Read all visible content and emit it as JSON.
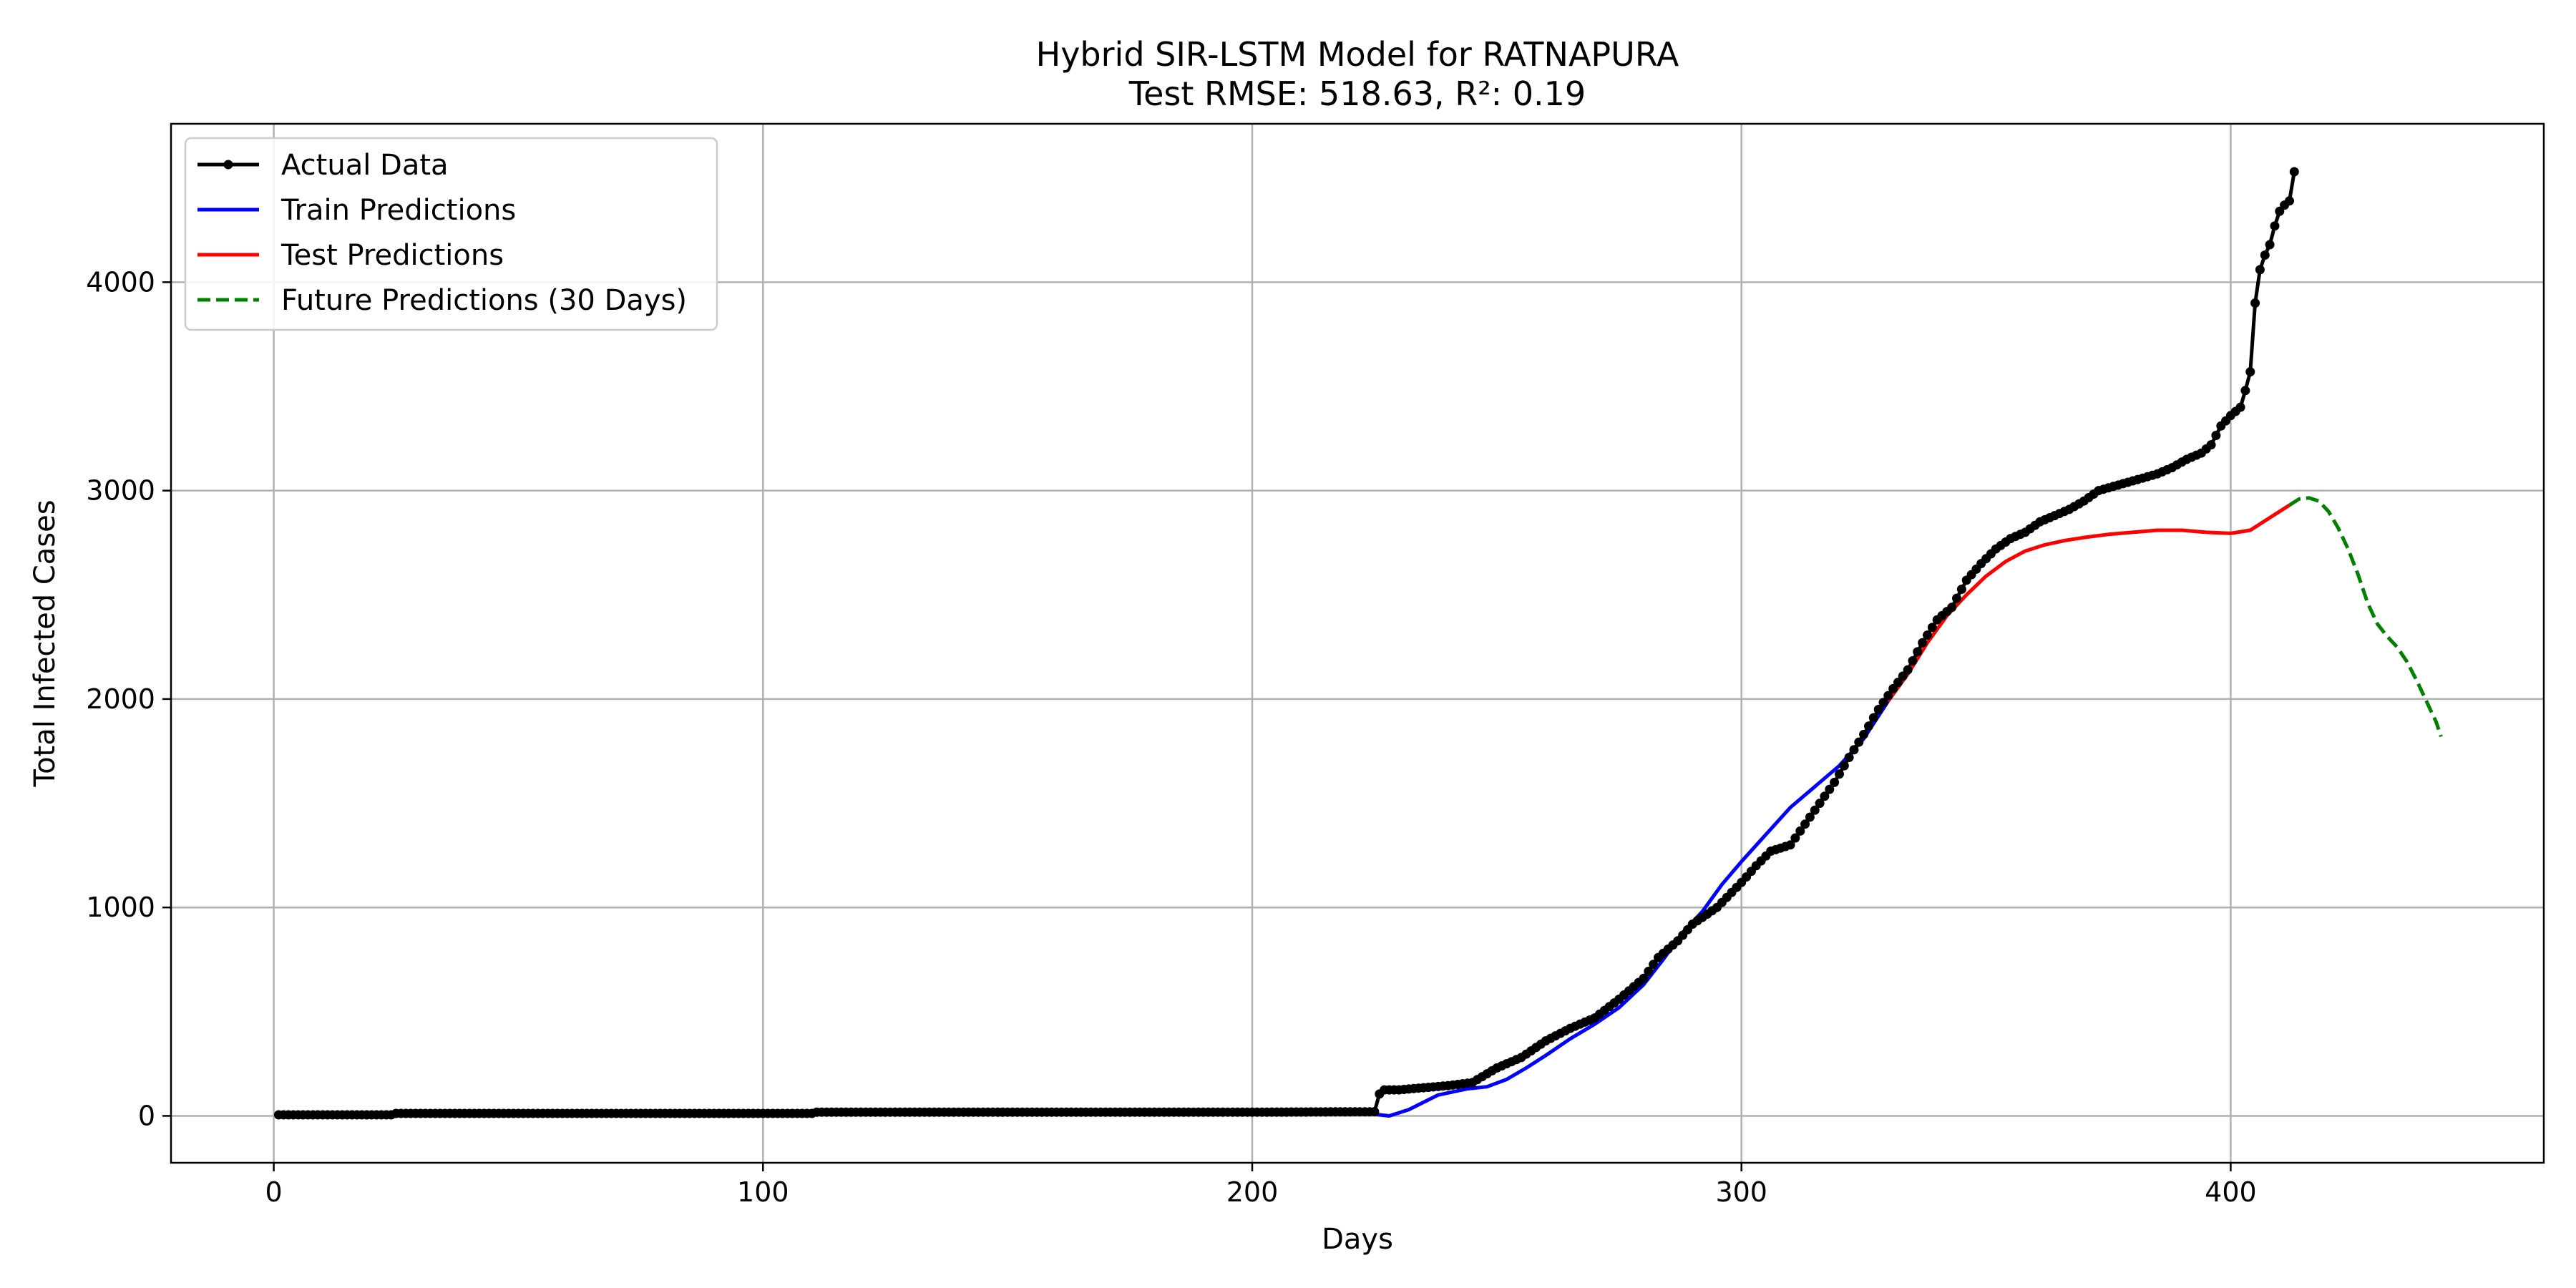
{
  "chart_data": {
    "type": "line",
    "title": "Hybrid SIR-LSTM Model for RATNAPURA",
    "subtitle": "Test RMSE: 518.63, R²: 0.19",
    "xlabel": "Days",
    "ylabel": "Total Infected Cases",
    "xlim": [
      -21,
      464
    ],
    "ylim": [
      -225,
      4760
    ],
    "xticks": [
      0,
      100,
      200,
      300,
      400
    ],
    "yticks": [
      0,
      1000,
      2000,
      3000,
      4000
    ],
    "grid": true,
    "legend_position": "upper-left",
    "series": [
      {
        "name": "Actual Data",
        "color": "#000000",
        "style": "solid-with-markers",
        "points": [
          [
            1,
            5
          ],
          [
            10,
            5
          ],
          [
            24,
            5
          ],
          [
            25,
            12
          ],
          [
            60,
            12
          ],
          [
            100,
            12
          ],
          [
            110,
            12
          ],
          [
            111,
            18
          ],
          [
            150,
            18
          ],
          [
            200,
            18
          ],
          [
            225,
            20
          ],
          [
            226,
            105
          ],
          [
            227,
            125
          ],
          [
            230,
            125
          ],
          [
            235,
            135
          ],
          [
            240,
            145
          ],
          [
            245,
            160
          ],
          [
            250,
            230
          ],
          [
            255,
            280
          ],
          [
            260,
            360
          ],
          [
            265,
            420
          ],
          [
            270,
            470
          ],
          [
            275,
            560
          ],
          [
            280,
            660
          ],
          [
            283,
            760
          ],
          [
            287,
            840
          ],
          [
            290,
            920
          ],
          [
            295,
            1000
          ],
          [
            300,
            1120
          ],
          [
            303,
            1200
          ],
          [
            306,
            1270
          ],
          [
            310,
            1300
          ],
          [
            313,
            1400
          ],
          [
            316,
            1500
          ],
          [
            319,
            1600
          ],
          [
            322,
            1720
          ],
          [
            325,
            1830
          ],
          [
            328,
            1950
          ],
          [
            331,
            2050
          ],
          [
            334,
            2140
          ],
          [
            337,
            2270
          ],
          [
            340,
            2380
          ],
          [
            343,
            2440
          ],
          [
            346,
            2570
          ],
          [
            349,
            2650
          ],
          [
            352,
            2720
          ],
          [
            355,
            2770
          ],
          [
            358,
            2800
          ],
          [
            361,
            2850
          ],
          [
            364,
            2880
          ],
          [
            367,
            2910
          ],
          [
            370,
            2950
          ],
          [
            373,
            3000
          ],
          [
            376,
            3020
          ],
          [
            379,
            3040
          ],
          [
            382,
            3060
          ],
          [
            385,
            3080
          ],
          [
            388,
            3110
          ],
          [
            391,
            3150
          ],
          [
            394,
            3180
          ],
          [
            396,
            3220
          ],
          [
            398,
            3310
          ],
          [
            400,
            3360
          ],
          [
            402,
            3400
          ],
          [
            403,
            3480
          ],
          [
            404,
            3570
          ],
          [
            405,
            3900
          ],
          [
            406,
            4060
          ],
          [
            407,
            4130
          ],
          [
            408,
            4180
          ],
          [
            409,
            4270
          ],
          [
            410,
            4340
          ],
          [
            411,
            4370
          ],
          [
            412,
            4390
          ],
          [
            413,
            4530
          ]
        ]
      },
      {
        "name": "Train Predictions",
        "color": "#0000ff",
        "style": "solid",
        "points": [
          [
            15,
            0
          ],
          [
            25,
            5
          ],
          [
            60,
            5
          ],
          [
            110,
            8
          ],
          [
            200,
            8
          ],
          [
            225,
            8
          ],
          [
            228,
            0
          ],
          [
            232,
            30
          ],
          [
            238,
            100
          ],
          [
            244,
            130
          ],
          [
            248,
            140
          ],
          [
            252,
            175
          ],
          [
            256,
            230
          ],
          [
            260,
            290
          ],
          [
            265,
            370
          ],
          [
            270,
            440
          ],
          [
            275,
            520
          ],
          [
            280,
            630
          ],
          [
            284,
            750
          ],
          [
            288,
            880
          ],
          [
            292,
            980
          ],
          [
            296,
            1110
          ],
          [
            300,
            1220
          ],
          [
            305,
            1350
          ],
          [
            310,
            1480
          ],
          [
            315,
            1580
          ],
          [
            320,
            1680
          ],
          [
            325,
            1810
          ],
          [
            330,
            1990
          ]
        ]
      },
      {
        "name": "Test Predictions",
        "color": "#ff0000",
        "style": "solid",
        "points": [
          [
            330,
            1990
          ],
          [
            334,
            2120
          ],
          [
            338,
            2270
          ],
          [
            342,
            2400
          ],
          [
            346,
            2500
          ],
          [
            350,
            2590
          ],
          [
            354,
            2660
          ],
          [
            358,
            2710
          ],
          [
            362,
            2740
          ],
          [
            366,
            2760
          ],
          [
            370,
            2775
          ],
          [
            375,
            2790
          ],
          [
            380,
            2800
          ],
          [
            385,
            2810
          ],
          [
            390,
            2810
          ],
          [
            395,
            2800
          ],
          [
            400,
            2795
          ],
          [
            404,
            2810
          ],
          [
            408,
            2870
          ],
          [
            412,
            2930
          ]
        ]
      },
      {
        "name": "Future Predictions (30 Days)",
        "color": "#008000",
        "style": "dashed",
        "points": [
          [
            412,
            2930
          ],
          [
            414,
            2960
          ],
          [
            416,
            2965
          ],
          [
            418,
            2950
          ],
          [
            420,
            2900
          ],
          [
            422,
            2820
          ],
          [
            424,
            2720
          ],
          [
            426,
            2600
          ],
          [
            428,
            2460
          ],
          [
            430,
            2360
          ],
          [
            432,
            2300
          ],
          [
            434,
            2250
          ],
          [
            436,
            2180
          ],
          [
            438,
            2090
          ],
          [
            440,
            1990
          ],
          [
            442,
            1890
          ],
          [
            443,
            1820
          ]
        ]
      }
    ]
  }
}
